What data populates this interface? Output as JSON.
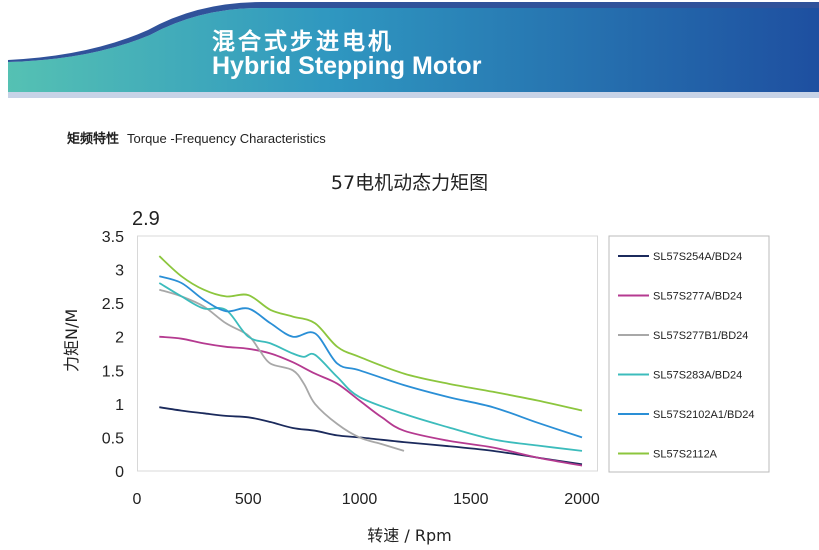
{
  "header": {
    "title_cn": "混合式步进电机",
    "title_en": "Hybrid Stepping Motor",
    "colors": {
      "left": "#4ab8b0",
      "right": "#1e4fa0",
      "stripe": "#1a3f8f"
    }
  },
  "section": {
    "label_cn": "矩频特性",
    "label_en": "Torque -Frequency Characteristics"
  },
  "chart_data": {
    "type": "line",
    "title": "57电机动态力矩图",
    "ymax_note": "2.9",
    "xlabel": "转速 / Rpm",
    "ylabel": "力矩N/M",
    "xlim": [
      0,
      2000
    ],
    "ylim": [
      0,
      3.5
    ],
    "xticks": [
      "0",
      "500",
      "1000",
      "1500",
      "2000"
    ],
    "yticks": [
      "0",
      "0.5",
      "1",
      "1.5",
      "2",
      "2.5",
      "3",
      "3.5"
    ],
    "grid": false,
    "legend_position": "right",
    "series": [
      {
        "name": "SL57S254A/BD24",
        "color": "#1b2a5c",
        "x": [
          100,
          200,
          300,
          400,
          500,
          600,
          700,
          800,
          900,
          1000,
          1200,
          1400,
          1600,
          1800,
          2000
        ],
        "y": [
          0.95,
          0.9,
          0.86,
          0.82,
          0.8,
          0.73,
          0.64,
          0.6,
          0.53,
          0.5,
          0.43,
          0.37,
          0.3,
          0.2,
          0.1
        ]
      },
      {
        "name": "SL57S277A/BD24",
        "color": "#b53a90",
        "x": [
          100,
          200,
          300,
          400,
          500,
          600,
          700,
          800,
          900,
          1000,
          1100,
          1200,
          1400,
          1600,
          1800,
          2000
        ],
        "y": [
          2.0,
          1.97,
          1.9,
          1.85,
          1.82,
          1.75,
          1.62,
          1.45,
          1.3,
          1.05,
          0.8,
          0.6,
          0.45,
          0.35,
          0.2,
          0.08
        ]
      },
      {
        "name": "SL57S277B1/BD24",
        "color": "#a8a8a8",
        "x": [
          100,
          200,
          300,
          400,
          500,
          550,
          600,
          700,
          750,
          800,
          900,
          1000,
          1100,
          1200
        ],
        "y": [
          2.7,
          2.6,
          2.45,
          2.2,
          2.02,
          1.8,
          1.6,
          1.5,
          1.3,
          1.0,
          0.7,
          0.5,
          0.4,
          0.3
        ]
      },
      {
        "name": "SL57S283A/BD24",
        "color": "#3cbcbc",
        "x": [
          100,
          200,
          300,
          400,
          500,
          600,
          700,
          750,
          800,
          900,
          1000,
          1200,
          1400,
          1600,
          1800,
          2000
        ],
        "y": [
          2.8,
          2.6,
          2.42,
          2.4,
          2.0,
          1.9,
          1.75,
          1.7,
          1.73,
          1.4,
          1.1,
          0.85,
          0.65,
          0.47,
          0.38,
          0.3
        ]
      },
      {
        "name": "SL57S2102A1/BD24",
        "color": "#2a8fd6",
        "x": [
          100,
          200,
          300,
          400,
          500,
          600,
          700,
          800,
          900,
          1000,
          1200,
          1400,
          1600,
          1800,
          2000
        ],
        "y": [
          2.9,
          2.8,
          2.55,
          2.38,
          2.42,
          2.2,
          2.0,
          2.05,
          1.6,
          1.5,
          1.28,
          1.1,
          0.95,
          0.72,
          0.5
        ]
      },
      {
        "name": "SL57S2112A",
        "color": "#8cc63e",
        "x": [
          100,
          200,
          300,
          400,
          500,
          600,
          700,
          800,
          900,
          1000,
          1200,
          1400,
          1600,
          1800,
          2000
        ],
        "y": [
          3.2,
          2.9,
          2.7,
          2.6,
          2.62,
          2.4,
          2.3,
          2.2,
          1.85,
          1.7,
          1.45,
          1.3,
          1.18,
          1.05,
          0.9
        ]
      }
    ]
  }
}
